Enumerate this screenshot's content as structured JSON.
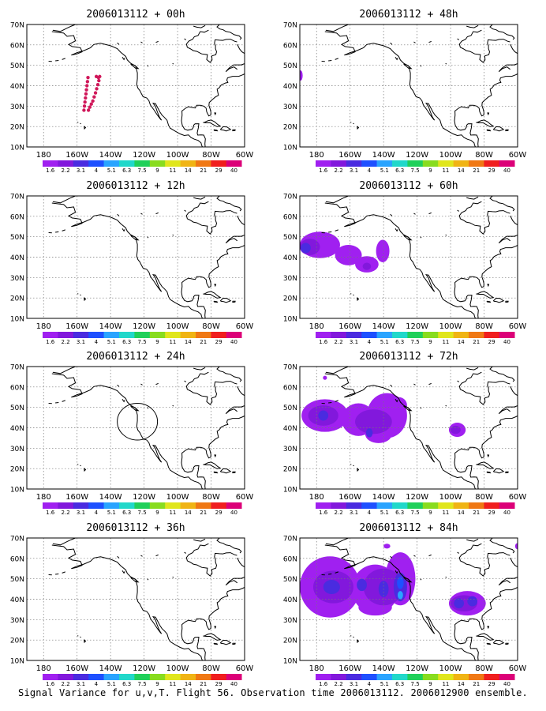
{
  "caption": "Signal Variance for u,v,T. Flight 56. Observation time 2006013112. 2006012900 ensemble.",
  "map": {
    "x_ticks": [
      "180",
      "160W",
      "140W",
      "120W",
      "100W",
      "80W",
      "60W"
    ],
    "y_ticks": [
      "70N",
      "60N",
      "50N",
      "40N",
      "30N",
      "20N",
      "10N"
    ],
    "lon_range": [
      -190,
      -60
    ],
    "lat_range": [
      10,
      70
    ]
  },
  "colorbar": {
    "labels": [
      "1.6",
      "2.2",
      "3.1",
      "4",
      "5.1",
      "6.3",
      "7.5",
      "9",
      "11",
      "14",
      "21",
      "29",
      "40"
    ],
    "colors": [
      "#a020f0",
      "#8218dc",
      "#4a2be0",
      "#1e50ff",
      "#2aa4ff",
      "#21d8ca",
      "#20d05a",
      "#88dc1e",
      "#e0e61c",
      "#f0b414",
      "#f07814",
      "#f01e1e",
      "#dc0078"
    ]
  },
  "chart_data": [
    {
      "type": "heatmap",
      "title": "2006013112 + 00h",
      "xlabel": "",
      "ylabel": "",
      "grid": true,
      "features": [
        {
          "kind": "dots",
          "color": "#d0185a",
          "points": [
            [
              -153.5,
              44
            ],
            [
              -153.8,
              42
            ],
            [
              -154.1,
              40
            ],
            [
              -154.4,
              38
            ],
            [
              -154.7,
              36
            ],
            [
              -155,
              34
            ],
            [
              -155.3,
              32
            ],
            [
              -155.6,
              30
            ],
            [
              -155.9,
              28
            ],
            [
              -146.5,
              44.5
            ],
            [
              -147,
              42.5
            ],
            [
              -147.6,
              40.5
            ],
            [
              -148.3,
              38.5
            ],
            [
              -149,
              36.5
            ],
            [
              -149.8,
              34.5
            ],
            [
              -150.6,
              32.5
            ],
            [
              -151.5,
              31
            ],
            [
              -152.4,
              29.5
            ],
            [
              -153.2,
              28
            ],
            [
              -148.5,
              44.5
            ],
            [
              -147.2,
              44
            ]
          ]
        }
      ]
    },
    {
      "type": "heatmap",
      "title": "2006013112 + 12h",
      "xlabel": "",
      "ylabel": "",
      "grid": true,
      "features": []
    },
    {
      "type": "heatmap",
      "title": "2006013112 + 24h",
      "xlabel": "",
      "ylabel": "",
      "grid": true,
      "features": [
        {
          "kind": "circle",
          "center": [
            -124,
            43
          ],
          "radius_deg": [
            12,
            9
          ]
        }
      ]
    },
    {
      "type": "heatmap",
      "title": "2006013112 + 36h",
      "xlabel": "",
      "ylabel": "",
      "grid": true,
      "features": []
    },
    {
      "type": "heatmap",
      "title": "2006013112 + 48h",
      "xlabel": "",
      "ylabel": "",
      "grid": true,
      "features": [
        {
          "kind": "blob",
          "color": "#a020f0",
          "center": [
            -189.5,
            45
          ],
          "radius_deg": [
            1.2,
            2.5
          ]
        }
      ]
    },
    {
      "type": "heatmap",
      "title": "2006013112 + 60h",
      "xlabel": "",
      "ylabel": "",
      "grid": true,
      "features": [
        {
          "kind": "blob",
          "color": "#a020f0",
          "center": [
            -178,
            46
          ],
          "radius_deg": [
            12,
            6.5
          ]
        },
        {
          "kind": "blob",
          "color": "#a020f0",
          "center": [
            -161,
            41
          ],
          "radius_deg": [
            8,
            5
          ]
        },
        {
          "kind": "blob",
          "color": "#a020f0",
          "center": [
            -150,
            36.5
          ],
          "radius_deg": [
            7,
            4
          ]
        },
        {
          "kind": "blob",
          "color": "#a020f0",
          "center": [
            -140.5,
            43
          ],
          "radius_deg": [
            4,
            5.5
          ]
        },
        {
          "kind": "blob",
          "color": "#8218dc",
          "center": [
            -184,
            45
          ],
          "radius_deg": [
            6,
            4
          ]
        },
        {
          "kind": "blob",
          "color": "#8218dc",
          "center": [
            -150,
            35.5
          ],
          "radius_deg": [
            2.5,
            1.8
          ]
        },
        {
          "kind": "blob",
          "color": "#4a2be0",
          "center": [
            -186.5,
            44.5
          ],
          "radius_deg": [
            3,
            2.5
          ]
        }
      ]
    },
    {
      "type": "heatmap",
      "title": "2006013112 + 72h",
      "xlabel": "",
      "ylabel": "",
      "grid": true,
      "features": [
        {
          "kind": "blob",
          "color": "#a020f0",
          "center": [
            -175,
            46
          ],
          "radius_deg": [
            14,
            8
          ]
        },
        {
          "kind": "blob",
          "color": "#a020f0",
          "center": [
            -155,
            44
          ],
          "radius_deg": [
            10,
            8
          ]
        },
        {
          "kind": "blob",
          "color": "#a020f0",
          "center": [
            -138,
            46
          ],
          "radius_deg": [
            12,
            11
          ]
        },
        {
          "kind": "blob",
          "color": "#a020f0",
          "center": [
            -143,
            37
          ],
          "radius_deg": [
            8,
            4.5
          ]
        },
        {
          "kind": "blob",
          "color": "#a020f0",
          "center": [
            -131,
            51
          ],
          "radius_deg": [
            5,
            4
          ]
        },
        {
          "kind": "blob",
          "color": "#a020f0",
          "center": [
            -96,
            39
          ],
          "radius_deg": [
            5,
            3.5
          ]
        },
        {
          "kind": "blob",
          "color": "#a020f0",
          "center": [
            -175,
            64.5
          ],
          "radius_deg": [
            1.2,
            1
          ]
        },
        {
          "kind": "blob",
          "color": "#8218dc",
          "center": [
            -176,
            46
          ],
          "radius_deg": [
            9,
            5
          ]
        },
        {
          "kind": "blob",
          "color": "#8218dc",
          "center": [
            -146,
            43
          ],
          "radius_deg": [
            11,
            6
          ]
        },
        {
          "kind": "blob",
          "color": "#8218dc",
          "center": [
            -97,
            39
          ],
          "radius_deg": [
            3,
            2
          ]
        },
        {
          "kind": "blob",
          "color": "#4a2be0",
          "center": [
            -176,
            46
          ],
          "radius_deg": [
            3,
            2.5
          ]
        },
        {
          "kind": "blob",
          "color": "#4a2be0",
          "center": [
            -148.5,
            37.5
          ],
          "radius_deg": [
            2,
            2.2
          ]
        }
      ]
    },
    {
      "type": "heatmap",
      "title": "2006013112 + 84h",
      "xlabel": "",
      "ylabel": "",
      "grid": true,
      "features": [
        {
          "kind": "blob",
          "color": "#a020f0",
          "center": [
            -172,
            46
          ],
          "radius_deg": [
            18,
            15
          ]
        },
        {
          "kind": "blob",
          "color": "#a020f0",
          "center": [
            -145,
            45
          ],
          "radius_deg": [
            14,
            12
          ]
        },
        {
          "kind": "blob",
          "color": "#a020f0",
          "center": [
            -130,
            50
          ],
          "radius_deg": [
            9,
            13
          ]
        },
        {
          "kind": "blob",
          "color": "#a020f0",
          "center": [
            -145,
            36
          ],
          "radius_deg": [
            10,
            4
          ]
        },
        {
          "kind": "blob",
          "color": "#a020f0",
          "center": [
            -90,
            38
          ],
          "radius_deg": [
            11,
            6
          ]
        },
        {
          "kind": "blob",
          "color": "#a020f0",
          "center": [
            -138,
            66
          ],
          "radius_deg": [
            2,
            1.2
          ]
        },
        {
          "kind": "blob",
          "color": "#a020f0",
          "center": [
            -60,
            66
          ],
          "radius_deg": [
            1.5,
            1.5
          ]
        },
        {
          "kind": "blob",
          "color": "#8218dc",
          "center": [
            -170,
            46
          ],
          "radius_deg": [
            12,
            8
          ]
        },
        {
          "kind": "blob",
          "color": "#8218dc",
          "center": [
            -140,
            46
          ],
          "radius_deg": [
            12,
            9
          ]
        },
        {
          "kind": "blob",
          "color": "#8218dc",
          "center": [
            -92,
            38
          ],
          "radius_deg": [
            8,
            4
          ]
        },
        {
          "kind": "blob",
          "color": "#4a2be0",
          "center": [
            -171,
            46
          ],
          "radius_deg": [
            5,
            3.5
          ]
        },
        {
          "kind": "blob",
          "color": "#4a2be0",
          "center": [
            -153,
            47
          ],
          "radius_deg": [
            3,
            3
          ]
        },
        {
          "kind": "blob",
          "color": "#4a2be0",
          "center": [
            -140,
            45
          ],
          "radius_deg": [
            3,
            4
          ]
        },
        {
          "kind": "blob",
          "color": "#4a2be0",
          "center": [
            -130,
            46
          ],
          "radius_deg": [
            4,
            7
          ]
        },
        {
          "kind": "blob",
          "color": "#4a2be0",
          "center": [
            -95,
            38
          ],
          "radius_deg": [
            3,
            2.5
          ]
        },
        {
          "kind": "blob",
          "color": "#4a2be0",
          "center": [
            -87,
            39
          ],
          "radius_deg": [
            3,
            2.5
          ]
        },
        {
          "kind": "blob",
          "color": "#1e50ff",
          "center": [
            -130,
            48
          ],
          "radius_deg": [
            2,
            3
          ]
        },
        {
          "kind": "blob",
          "color": "#2aa4ff",
          "center": [
            -130,
            42
          ],
          "radius_deg": [
            1.6,
            2
          ]
        }
      ]
    }
  ]
}
